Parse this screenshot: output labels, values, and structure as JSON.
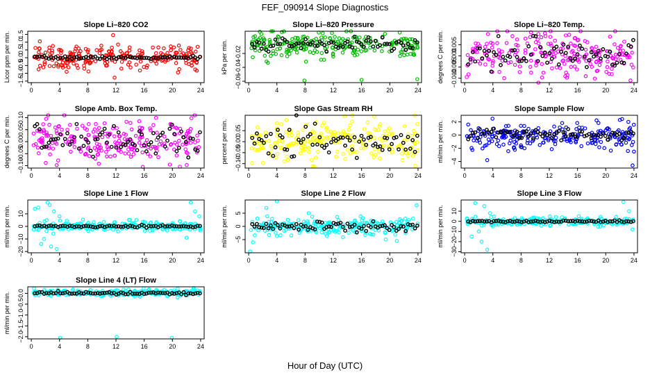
{
  "figure": {
    "title": "FEF_090914  Slope Diagnostics",
    "xlabel": "Hour of Day (UTC)"
  },
  "colors": {
    "mean_series": "#000000",
    "axis": "#000000"
  },
  "chart_data": [
    {
      "type": "scatter",
      "title": "Slope Li–820 CO2",
      "ylabel": "Licor ppm per min.",
      "color": "#ff0000",
      "xlim": [
        -0.5,
        24.5
      ],
      "ylim": [
        -1.6,
        1.7
      ],
      "xticks": [
        0,
        4,
        8,
        12,
        16,
        20,
        24
      ],
      "yticks": [
        -1.5,
        -1.0,
        -0.5,
        0.0,
        0.5,
        1.0,
        1.5
      ],
      "ytick_labels": [
        "−1.5",
        "−1.0",
        "−0.5",
        "0.0",
        "0.5",
        "1.0",
        "1.5"
      ],
      "sample_center": 0.0,
      "sample_spread": 0.35,
      "mean_center": 0.0,
      "mean_spread": 0.05,
      "outliers": [
        [
          1.2,
          1.05
        ],
        [
          1.7,
          -0.62
        ],
        [
          5.0,
          -0.9
        ],
        [
          6.4,
          0.72
        ],
        [
          8.1,
          -0.88
        ],
        [
          11.6,
          1.45
        ],
        [
          11.8,
          -1.28
        ],
        [
          12.3,
          0.85
        ],
        [
          15.4,
          -0.82
        ],
        [
          20.2,
          0.66
        ],
        [
          20.8,
          -0.95
        ]
      ]
    },
    {
      "type": "scatter",
      "title": "Slope Li–820 Pressure",
      "ylabel": "kPa per min.",
      "color": "#00bb00",
      "xlim": [
        -0.5,
        24.5
      ],
      "ylim": [
        -0.062,
        0.012
      ],
      "xticks": [
        0,
        4,
        8,
        12,
        16,
        20,
        24
      ],
      "yticks": [
        -0.06,
        -0.04,
        -0.02
      ],
      "ytick_labels": [
        "−0.06",
        "−0.04",
        "−0.02"
      ],
      "sample_center": -0.007,
      "sample_spread": 0.009,
      "mean_center": -0.007,
      "mean_spread": 0.004,
      "outliers": [
        [
          7.9,
          -0.059
        ],
        [
          16.0,
          -0.058
        ],
        [
          23.9,
          -0.057
        ],
        [
          1.8,
          0.008
        ],
        [
          10.5,
          0.009
        ]
      ]
    },
    {
      "type": "scatter",
      "title": "Slope Li–820 Temp.",
      "ylabel": "degrees C per min.",
      "color": "#ff00ff",
      "xlim": [
        -0.5,
        24.5
      ],
      "ylim": [
        -0.012,
        0.011
      ],
      "xticks": [
        0,
        4,
        8,
        12,
        16,
        20,
        24
      ],
      "yticks": [
        -0.01,
        -0.005,
        0.0,
        0.005
      ],
      "ytick_labels": [
        "−0.010",
        "−0.005",
        "0.000",
        "0.005"
      ],
      "sample_center": 0.0,
      "sample_spread": 0.0045,
      "mean_center": 0.0,
      "mean_spread": 0.003,
      "outliers": [
        [
          9.4,
          0.0105
        ],
        [
          0.3,
          -0.0095
        ],
        [
          5.6,
          -0.01
        ],
        [
          14.5,
          -0.0098
        ]
      ]
    },
    {
      "type": "scatter",
      "title": "Slope Amb. Box Temp.",
      "ylabel": "degrees C per min.",
      "color": "#ff00ff",
      "xlim": [
        -0.5,
        24.5
      ],
      "ylim": [
        -0.11,
        0.11
      ],
      "xticks": [
        0,
        4,
        8,
        12,
        16,
        20,
        24
      ],
      "yticks": [
        -0.1,
        -0.05,
        0.0,
        0.05,
        0.1
      ],
      "ytick_labels": [
        "−0.10",
        "−0.05",
        "0.00",
        "0.05",
        "0.10"
      ],
      "sample_center": 0.0,
      "sample_spread": 0.04,
      "mean_center": 0.0,
      "mean_spread": 0.03,
      "outliers": [
        [
          15.8,
          -0.105
        ],
        [
          2.1,
          0.095
        ],
        [
          22.7,
          0.098
        ]
      ]
    },
    {
      "type": "scatter",
      "title": "Slope Gas Stream RH",
      "ylabel": "percent per min.",
      "color": "#ffff00",
      "xlim": [
        -0.5,
        24.5
      ],
      "ylim": [
        -0.12,
        0.12
      ],
      "xticks": [
        0,
        4,
        8,
        12,
        16,
        20,
        24
      ],
      "yticks": [
        -0.1,
        -0.05,
        0.0,
        0.05
      ],
      "ytick_labels": [
        "−0.10",
        "−0.05",
        "0.00",
        "0.05"
      ],
      "sample_center": 0.0,
      "sample_spread": 0.045,
      "mean_center": 0.0,
      "mean_spread": 0.035,
      "outliers": [
        [
          17.8,
          0.115
        ],
        [
          23.6,
          -0.11
        ]
      ]
    },
    {
      "type": "scatter",
      "title": "Slope Sample Flow",
      "ylabel": "ml/min per min.",
      "color": "#0000ff",
      "xlim": [
        -0.5,
        24.5
      ],
      "ylim": [
        -5.0,
        3.0
      ],
      "xticks": [
        0,
        4,
        8,
        12,
        16,
        20,
        24
      ],
      "yticks": [
        -4,
        -2,
        0,
        2
      ],
      "ytick_labels": [
        "−4",
        "−2",
        "0",
        "2"
      ],
      "sample_center": -0.2,
      "sample_spread": 0.9,
      "mean_center": 0.1,
      "mean_spread": 0.4,
      "outliers": [
        [
          3.2,
          -3.8
        ],
        [
          23.8,
          -4.6
        ],
        [
          24.0,
          -2.5
        ],
        [
          22.0,
          2.3
        ],
        [
          23.2,
          2.0
        ],
        [
          0.5,
          1.6
        ]
      ]
    },
    {
      "type": "scatter",
      "title": "Slope Line 1 Flow",
      "ylabel": "ml/min per min.",
      "color": "#00ffff",
      "xlim": [
        -0.5,
        24.5
      ],
      "ylim": [
        -21,
        21
      ],
      "xticks": [
        0,
        4,
        8,
        12,
        16,
        20,
        24
      ],
      "yticks": [
        -20,
        -10,
        0,
        10
      ],
      "ytick_labels": [
        "−20",
        "−10",
        "0",
        "10"
      ],
      "sample_center": 0.0,
      "sample_spread": 2.0,
      "mean_center": 0.0,
      "mean_spread": 0.4,
      "outliers": [
        [
          0.5,
          14
        ],
        [
          1.0,
          15
        ],
        [
          1.8,
          -10
        ],
        [
          2.3,
          19
        ],
        [
          2.8,
          -16
        ],
        [
          3.2,
          12
        ],
        [
          3.6,
          -18
        ],
        [
          4.0,
          8
        ],
        [
          1.4,
          -14
        ],
        [
          2.6,
          17
        ],
        [
          22.6,
          19
        ],
        [
          23.2,
          12
        ],
        [
          23.8,
          8
        ],
        [
          22.0,
          -9
        ]
      ]
    },
    {
      "type": "scatter",
      "title": "Slope Line 2 Flow",
      "ylabel": "ml/min per min.",
      "color": "#00ffff",
      "xlim": [
        -0.5,
        24.5
      ],
      "ylim": [
        -10,
        10
      ],
      "xticks": [
        0,
        4,
        8,
        12,
        16,
        20,
        24
      ],
      "yticks": [
        -5,
        0,
        5
      ],
      "ytick_labels": [
        "−5",
        "0",
        "5"
      ],
      "sample_center": 0.0,
      "sample_spread": 1.5,
      "mean_center": 0.0,
      "mean_spread": 0.8,
      "outliers": [
        [
          4.0,
          9.5
        ],
        [
          0.2,
          -9.5
        ],
        [
          0.6,
          -6.0
        ],
        [
          2.5,
          7.0
        ],
        [
          23.8,
          8.0
        ],
        [
          21.0,
          -5.5
        ],
        [
          8.5,
          5.0
        ]
      ]
    },
    {
      "type": "scatter",
      "title": "Slope Line 3 Flow",
      "ylabel": "ml/min per min.",
      "color": "#00ffff",
      "xlim": [
        -0.5,
        24.5
      ],
      "ylim": [
        -31,
        21
      ],
      "xticks": [
        0,
        4,
        8,
        12,
        16,
        20,
        24
      ],
      "yticks": [
        -30,
        -20,
        -10,
        0,
        10
      ],
      "ytick_labels": [
        "−30",
        "−20",
        "−10",
        "0",
        "10"
      ],
      "sample_center": 0.0,
      "sample_spread": 2.0,
      "mean_center": 0.0,
      "mean_spread": 0.5,
      "outliers": [
        [
          1.5,
          18
        ],
        [
          2.0,
          -10
        ],
        [
          2.4,
          -20
        ],
        [
          2.8,
          15
        ],
        [
          3.2,
          -28
        ],
        [
          3.6,
          8
        ],
        [
          1.0,
          -15
        ],
        [
          4.0,
          -5
        ],
        [
          22.5,
          19
        ],
        [
          23.3,
          10
        ],
        [
          23.8,
          -8
        ]
      ]
    },
    {
      "type": "scatter",
      "title": "Slope Line 4 (LT) Flow",
      "ylabel": "ml/min per min.",
      "color": "#00ffff",
      "xlim": [
        -0.5,
        24.5
      ],
      "ylim": [
        -2.1,
        0.3
      ],
      "xticks": [
        0,
        4,
        8,
        12,
        16,
        20,
        24
      ],
      "yticks": [
        -2.0,
        -1.5,
        -1.0,
        -0.5,
        0.0
      ],
      "ytick_labels": [
        "−2.0",
        "−1.5",
        "−1.0",
        "−0.5",
        "0.0"
      ],
      "sample_center": 0.02,
      "sample_spread": 0.07,
      "mean_center": 0.0,
      "mean_spread": 0.03,
      "outliers": [
        [
          4.1,
          -2.05
        ],
        [
          12.1,
          -2.0
        ],
        [
          19.9,
          -2.05
        ],
        [
          0.4,
          0.22
        ],
        [
          23.0,
          0.25
        ]
      ]
    }
  ]
}
